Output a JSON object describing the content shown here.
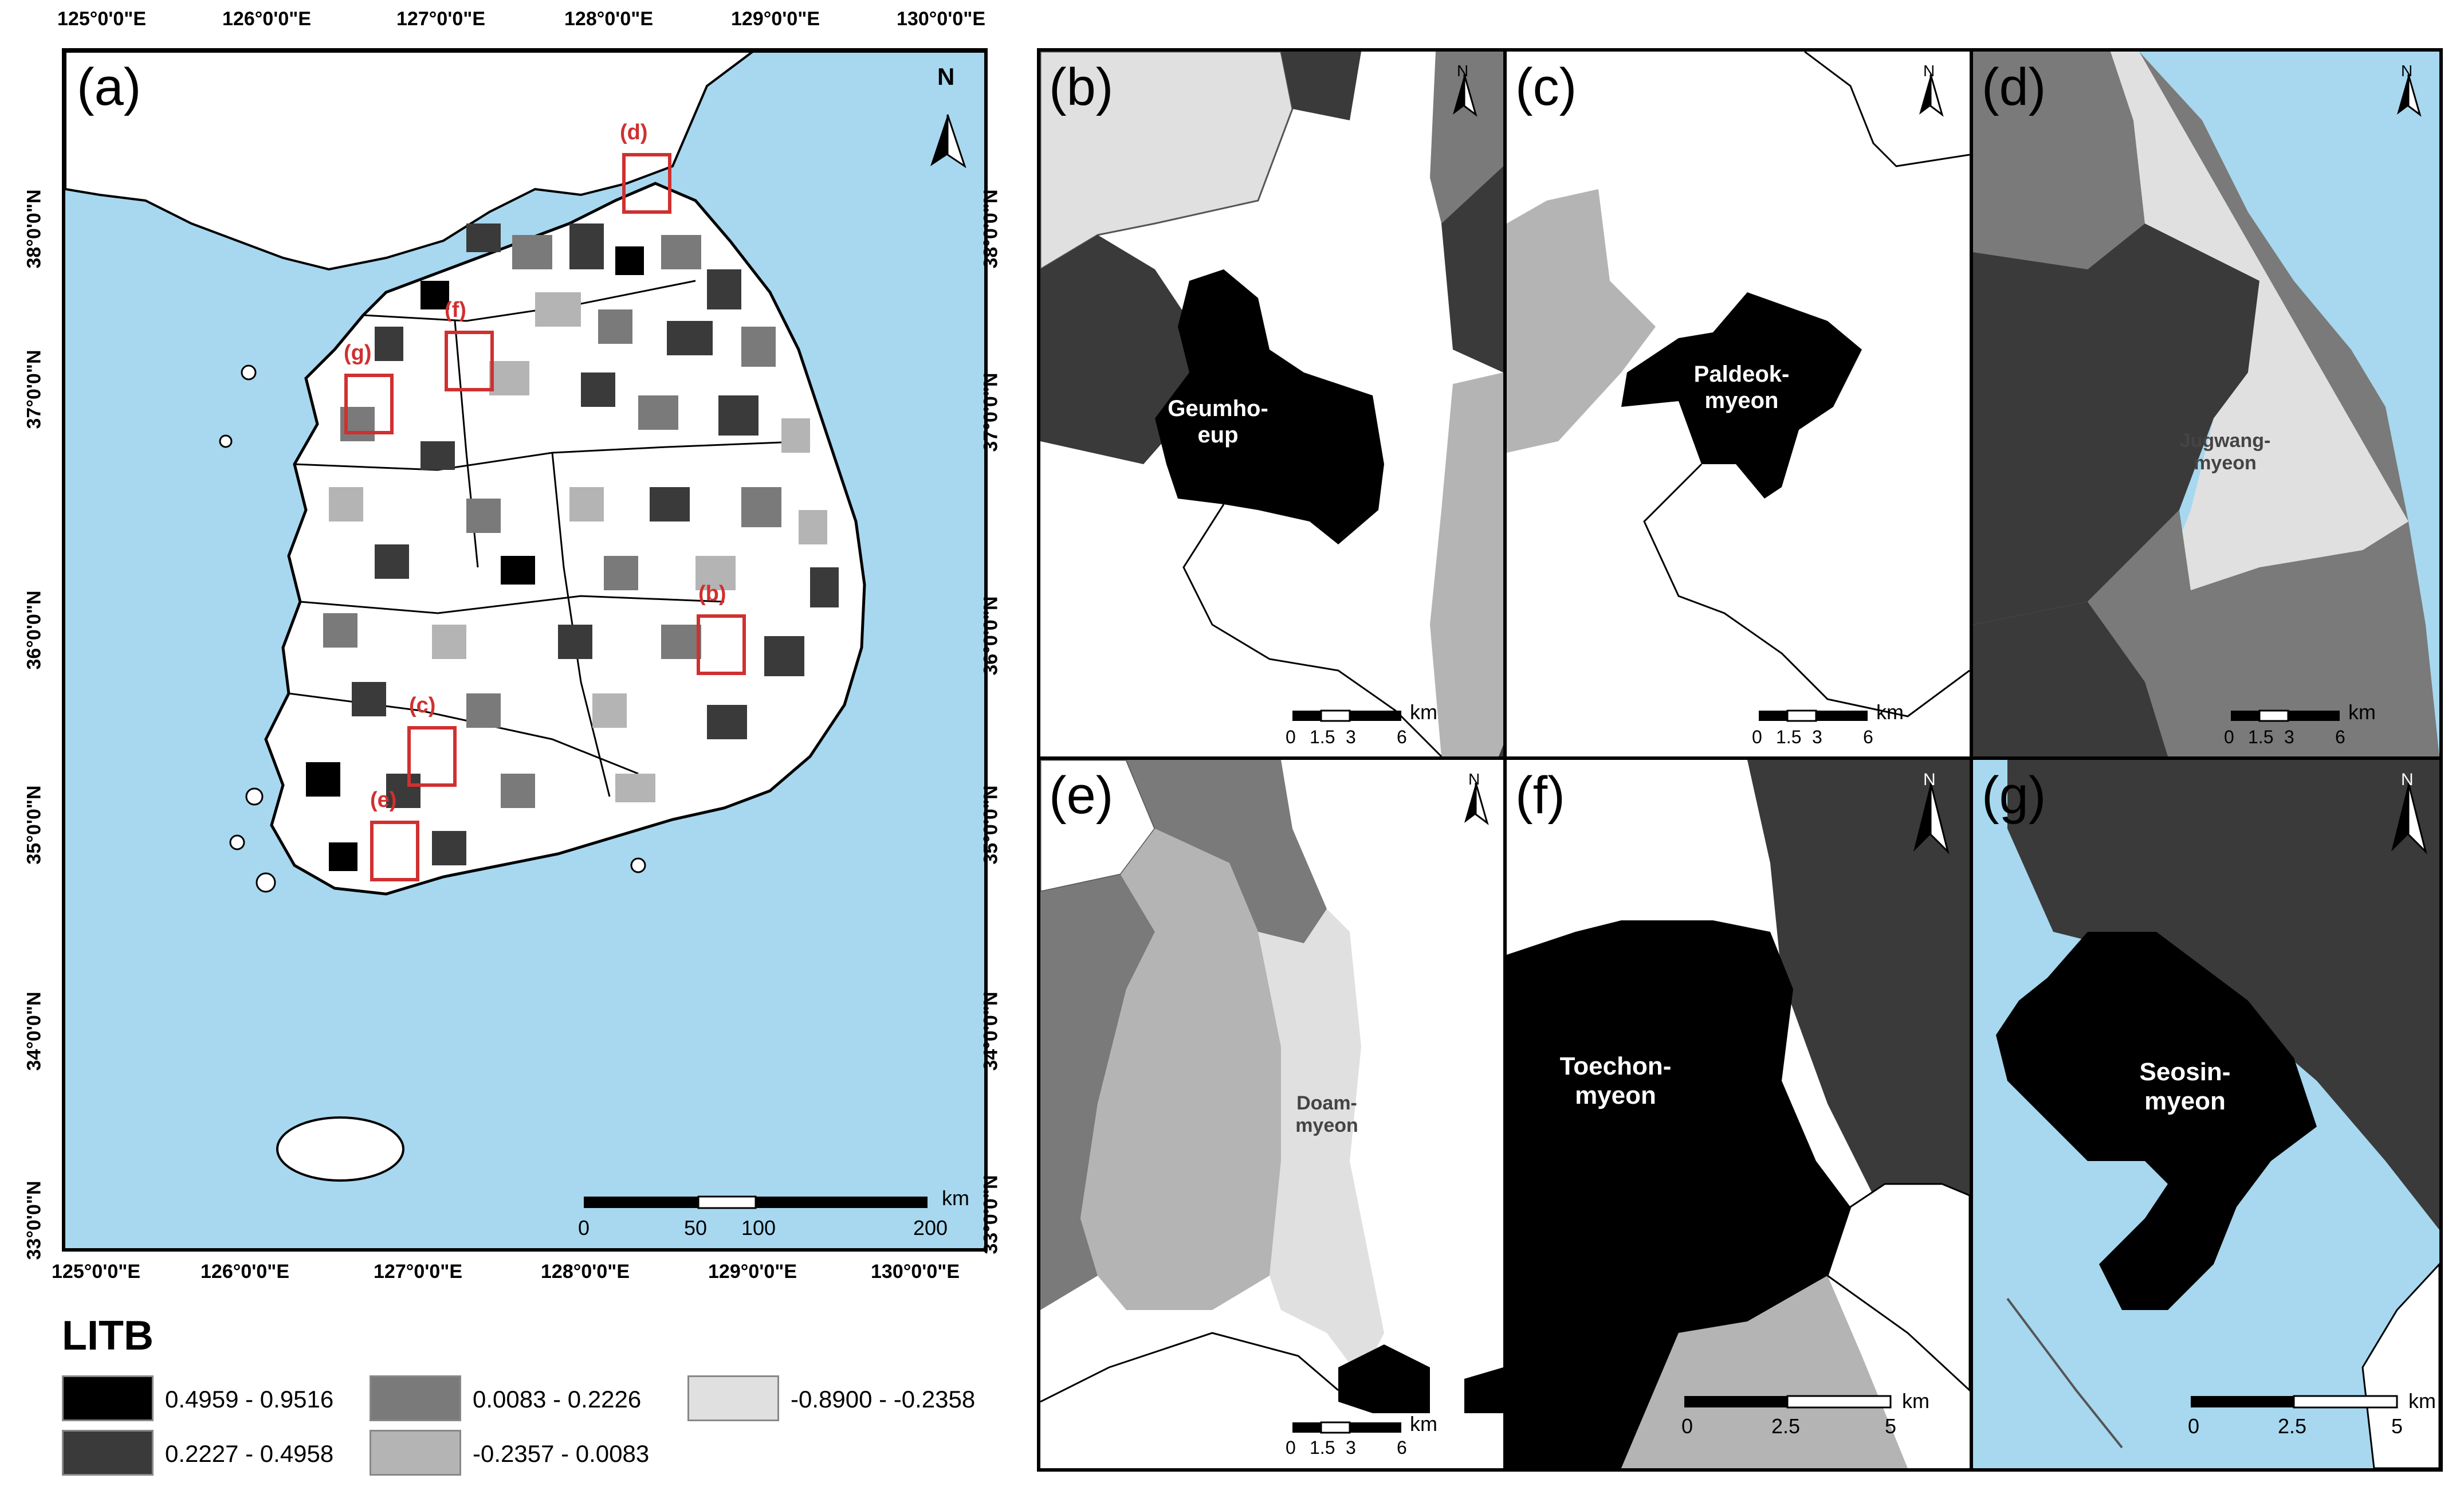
{
  "colors": {
    "sea": "#a7d8ef",
    "class1": "#000000",
    "class2": "#3a3a3a",
    "class3": "#7a7a7a",
    "class4": "#b4b4b4",
    "class5": "#e0e0e0",
    "land_white": "#ffffff",
    "highlight_box": "#d03030"
  },
  "main_map": {
    "panel_label": "(a)",
    "north_label": "N",
    "top_lon_labels": [
      "125°0'0\"E",
      "126°0'0\"E",
      "127°0'0\"E",
      "128°0'0\"E",
      "129°0'0\"E",
      "130°0'0\"E"
    ],
    "bottom_lon_labels": [
      "125°0'0\"E",
      "126°0'0\"E",
      "127°0'0\"E",
      "128°0'0\"E",
      "129°0'0\"E",
      "130°0'0\"E"
    ],
    "left_lat_labels": [
      "38°0'0\"N",
      "37°0'0\"N",
      "36°0'0\"N",
      "35°0'0\"N",
      "34°0'0\"N",
      "33°0'0\"N"
    ],
    "scale_unit": "km",
    "scale_ticks": [
      "0",
      "50",
      "100",
      "200"
    ],
    "boxes": [
      "(d)",
      "(f)",
      "(g)",
      "(b)",
      "(c)",
      "(e)"
    ]
  },
  "mid_lat_labels": [
    "38°0'0\"N",
    "37°0'0\"N",
    "36°0'0\"N",
    "35°0'0\"N",
    "34°0'0\"N",
    "33°0'0\"N"
  ],
  "panels": {
    "b": {
      "label": "(b)",
      "north": "N",
      "place": "Geumho-\neup",
      "scale_unit": "km",
      "scale_ticks": [
        "0",
        "1.5",
        "3",
        "6"
      ]
    },
    "c": {
      "label": "(c)",
      "north": "N",
      "place": "Paldeok-\nmyeon",
      "scale_unit": "km",
      "scale_ticks": [
        "0",
        "1.5",
        "3",
        "6"
      ]
    },
    "d": {
      "label": "(d)",
      "north": "N",
      "place": "Jugwang-\nmyeon",
      "scale_unit": "km",
      "scale_ticks": [
        "0",
        "1.5",
        "3",
        "6"
      ]
    },
    "e": {
      "label": "(e)",
      "north": "N",
      "place": "Doam-\nmyeon",
      "scale_unit": "km",
      "scale_ticks": [
        "0",
        "1.5",
        "3",
        "6"
      ]
    },
    "f": {
      "label": "(f)",
      "north": "N",
      "place": "Toechon-\nmyeon",
      "scale_unit": "km",
      "scale_ticks": [
        "0",
        "2.5",
        "5"
      ]
    },
    "g": {
      "label": "(g)",
      "north": "N",
      "place": "Seosin-\nmyeon",
      "scale_unit": "km",
      "scale_ticks": [
        "0",
        "2.5",
        "5"
      ]
    }
  },
  "legend": {
    "title": "LITB",
    "items": [
      {
        "range": "0.4959 - 0.9516",
        "color": "#000000"
      },
      {
        "range": "0.2227 - 0.4958",
        "color": "#3a3a3a"
      },
      {
        "range": "0.0083 - 0.2226",
        "color": "#7a7a7a"
      },
      {
        "range": "-0.2357 - 0.0083",
        "color": "#b4b4b4"
      },
      {
        "range": "-0.8900 - -0.2358",
        "color": "#e0e0e0"
      }
    ]
  }
}
